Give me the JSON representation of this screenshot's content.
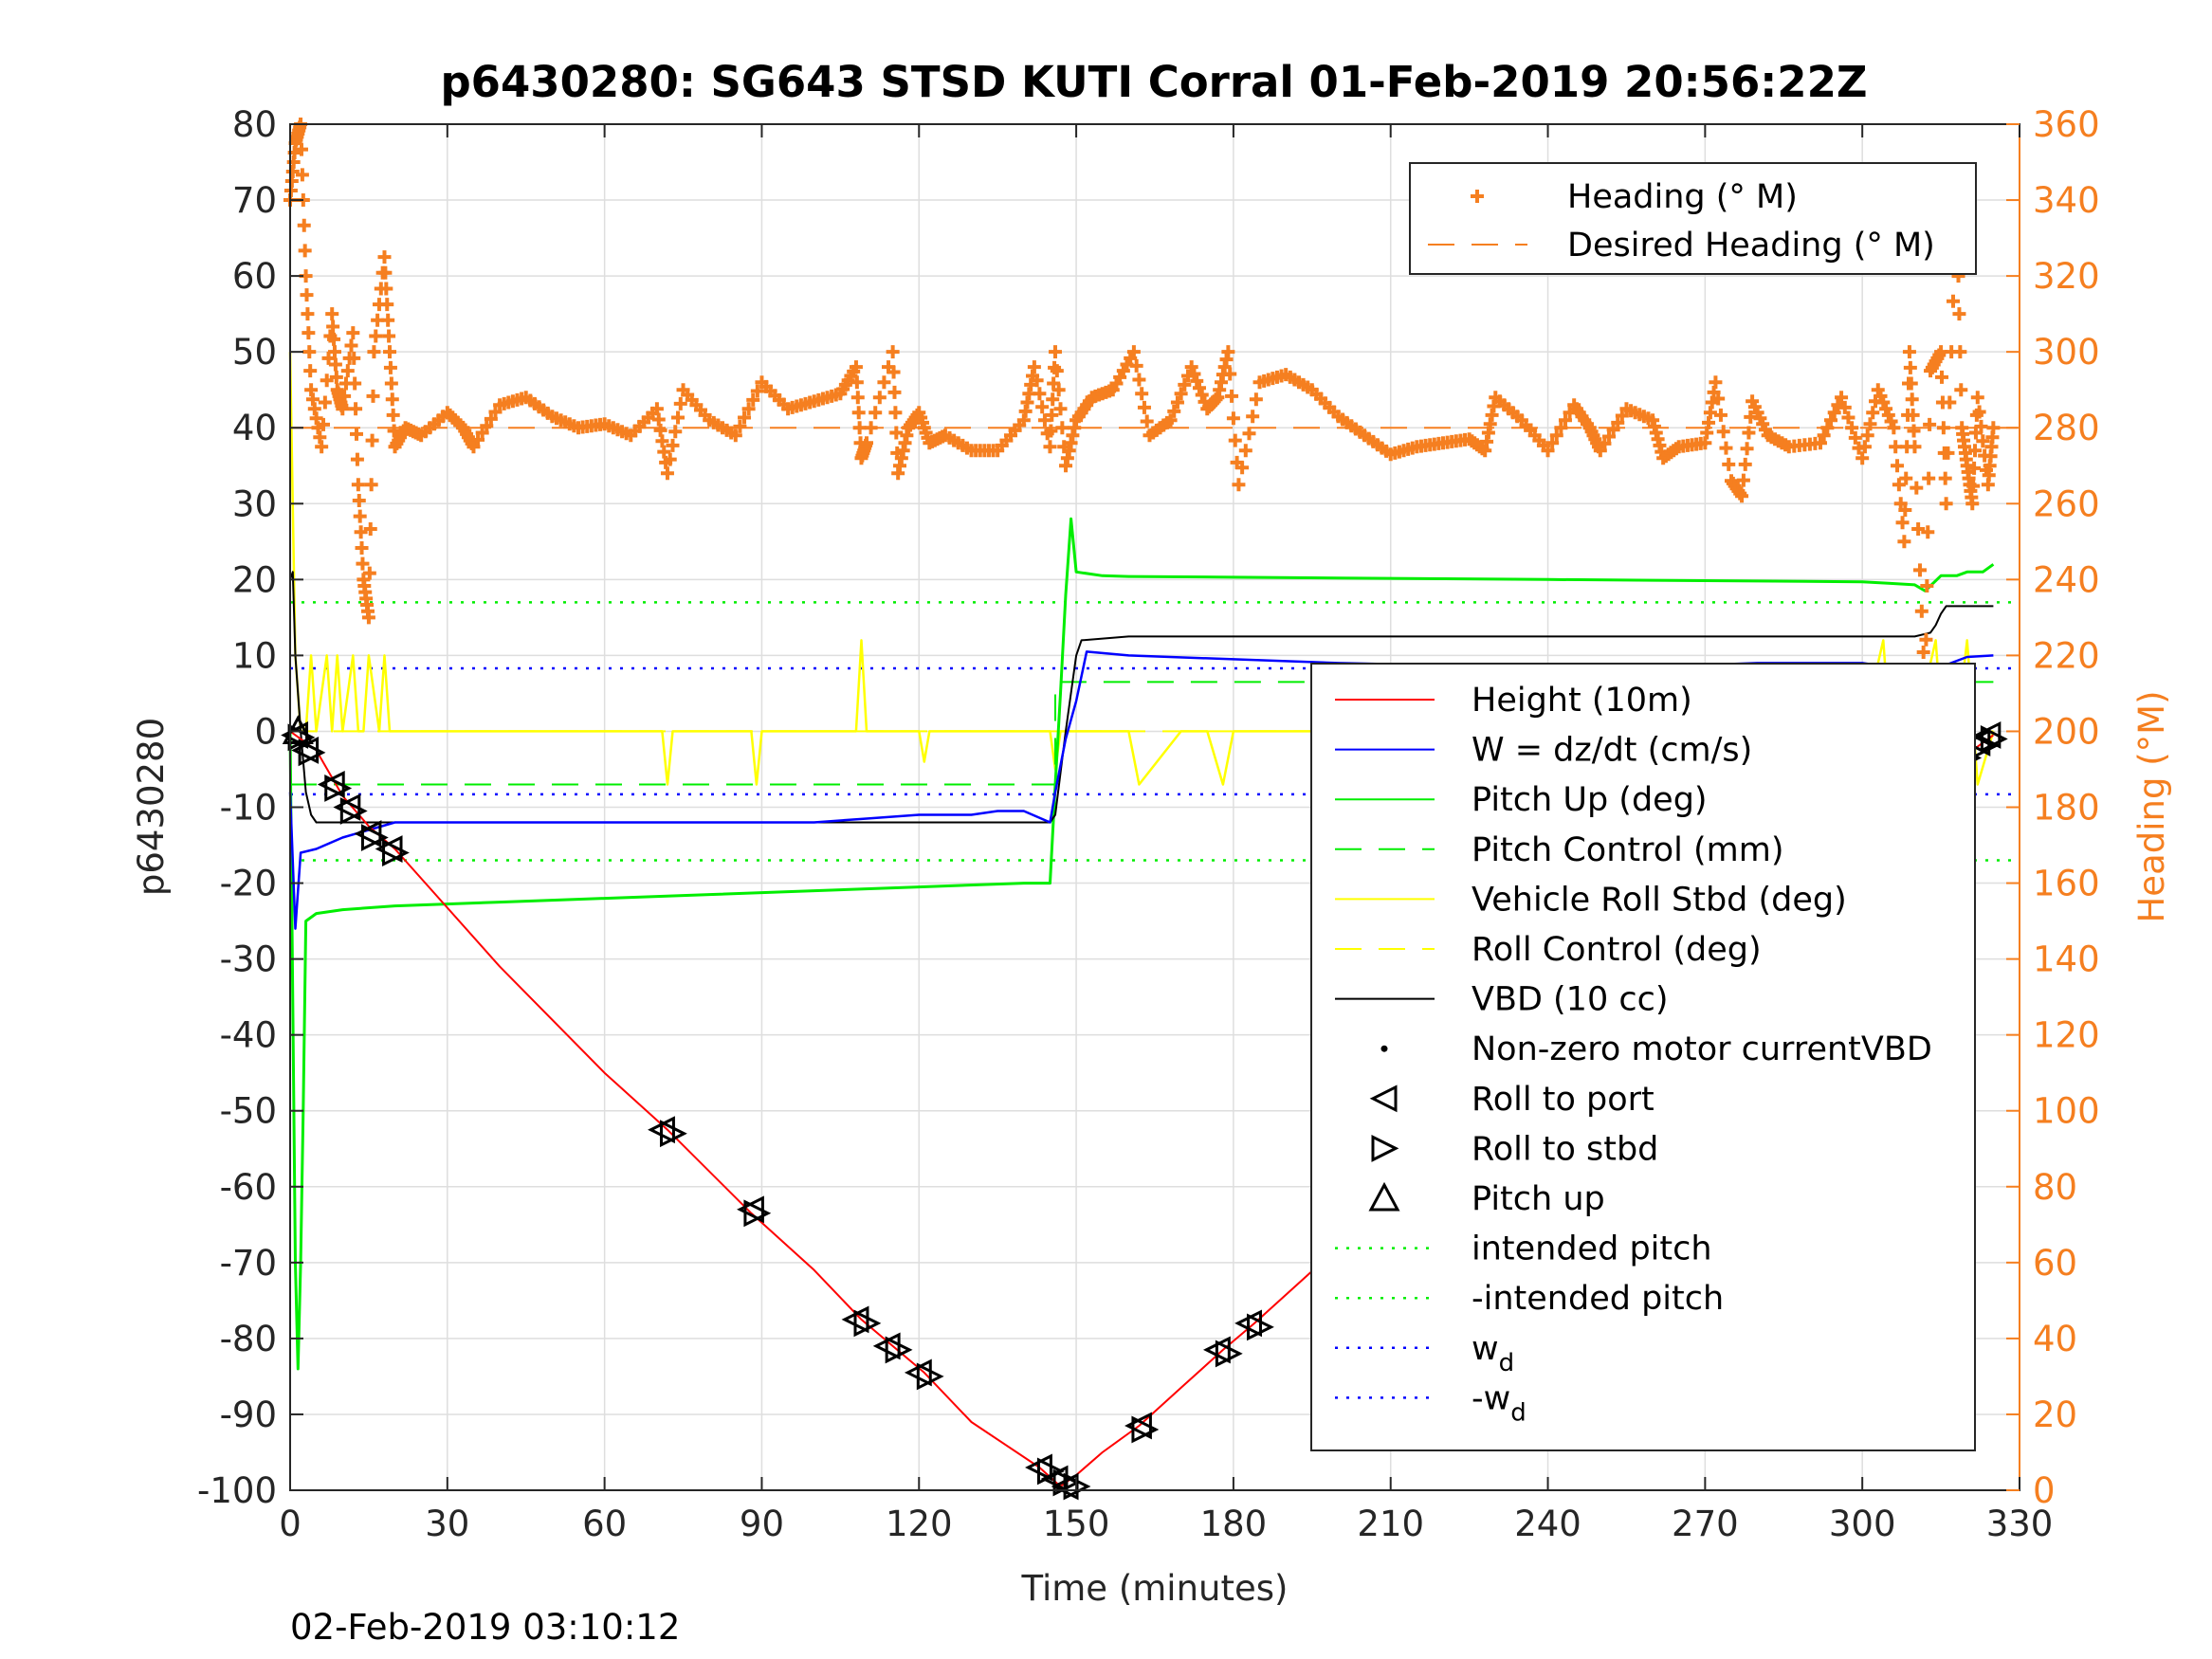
{
  "chart_data": {
    "type": "line",
    "title": "p6430280: SG643 STSD KUTI Corral 01-Feb-2019 20:56:22Z",
    "xlabel": "Time (minutes)",
    "ylabel": "p6430280",
    "y2label": "Heading (°M)",
    "footer": "02-Feb-2019 03:10:12",
    "xlim": [
      0,
      330
    ],
    "ylim": [
      -100,
      80
    ],
    "y2lim": [
      0,
      360
    ],
    "xticks": [
      "0",
      "30",
      "60",
      "90",
      "120",
      "150",
      "180",
      "210",
      "240",
      "270",
      "300",
      "330"
    ],
    "yticks": [
      "80",
      "70",
      "60",
      "50",
      "40",
      "30",
      "20",
      "10",
      "0",
      "-10",
      "-20",
      "-30",
      "-40",
      "-50",
      "-60",
      "-70",
      "-80",
      "-90",
      "-100"
    ],
    "y2ticks": [
      "360",
      "340",
      "320",
      "300",
      "280",
      "260",
      "240",
      "220",
      "200",
      "180",
      "160",
      "140",
      "120",
      "100",
      "80",
      "60",
      "40",
      "20",
      "0"
    ],
    "grid": true,
    "colors": {
      "axis_right": "#F57F20",
      "heading": "#F57F20",
      "height": "#FF0000",
      "w": "#0000FF",
      "pitch": "#00EE00",
      "roll": "#FFFF00",
      "vbd": "#000000"
    },
    "legend_top": {
      "placement": "top-right",
      "items": [
        {
          "label": "Heading (° M)",
          "style": "plus"
        },
        {
          "label": "Desired Heading (° M)",
          "style": "dash"
        }
      ]
    },
    "legend_main": {
      "placement": "lower-right",
      "items": [
        {
          "label": "Height (10m)",
          "style": "line",
          "color": "#FF0000"
        },
        {
          "label": "W = dz/dt (cm/s)",
          "style": "line",
          "color": "#0000FF"
        },
        {
          "label": "Pitch Up (deg)",
          "style": "line",
          "color": "#00EE00"
        },
        {
          "label": "Pitch Control (mm)",
          "style": "dash",
          "color": "#00EE00"
        },
        {
          "label": "Vehicle Roll Stbd (deg)",
          "style": "line",
          "color": "#FFFF00"
        },
        {
          "label": "Roll Control (deg)",
          "style": "dash",
          "color": "#FFFF00"
        },
        {
          "label": "VBD (10 cc)",
          "style": "line",
          "color": "#000000"
        },
        {
          "label": "Non-zero motor currentVBD",
          "style": "dot",
          "color": "#000000"
        },
        {
          "label": "Roll to port",
          "style": "tri-left",
          "color": "#000000"
        },
        {
          "label": "Roll to stbd",
          "style": "tri-right",
          "color": "#000000"
        },
        {
          "label": "Pitch up",
          "style": "tri-up",
          "color": "#000000"
        },
        {
          "label": "intended pitch",
          "style": "dot-line",
          "color": "#00EE00"
        },
        {
          "label": "-intended pitch",
          "style": "dot-line",
          "color": "#00EE00"
        },
        {
          "label": "w",
          "sub": "d",
          "style": "dot-line",
          "color": "#0000FF"
        },
        {
          "label": "-w",
          "sub": "d",
          "style": "dot-line",
          "color": "#0000FF"
        }
      ]
    },
    "series": [
      {
        "name": "Height (10m)",
        "axis": "left",
        "x": [
          0,
          2,
          5,
          10,
          15,
          20,
          40,
          60,
          72,
          88,
          100,
          109,
          115,
          121,
          130,
          143,
          147,
          148,
          150,
          155,
          162,
          170,
          178,
          184,
          200,
          231,
          252,
          273,
          280,
          296,
          303,
          305,
          308,
          314,
          316,
          319,
          321,
          323,
          325
        ],
        "y": [
          0,
          -1,
          -2.5,
          -8.5,
          -12.5,
          -15.5,
          -31,
          -45,
          -52.5,
          -63.5,
          -71,
          -77.5,
          -81,
          -84.5,
          -91,
          -97,
          -99.5,
          -99,
          -98,
          -95,
          -91.5,
          -86.5,
          -81.5,
          -78,
          -68,
          -51.5,
          -40.5,
          -28.5,
          -25,
          -15.5,
          -12,
          -10.5,
          -9,
          -7,
          -5.5,
          -3.5,
          -2.5,
          -1.5,
          -0.5
        ]
      },
      {
        "name": "W = dz/dt (cm/s)",
        "axis": "left",
        "x": [
          0,
          1,
          2,
          5,
          10,
          20,
          40,
          60,
          80,
          100,
          110,
          120,
          130,
          135,
          140,
          145,
          146,
          148,
          150,
          152,
          160,
          180,
          200,
          220,
          240,
          260,
          280,
          300,
          305,
          310,
          315,
          320,
          325
        ],
        "y": [
          -8,
          -26,
          -16,
          -15.5,
          -14,
          -12,
          -12,
          -12,
          -12,
          -12,
          -11.5,
          -11,
          -11,
          -10.5,
          -10.5,
          -12,
          -8,
          -1,
          4,
          10.5,
          10,
          9.5,
          9,
          8.7,
          8.6,
          8.5,
          9,
          9,
          8.5,
          8.2,
          8.5,
          9.8,
          10
        ]
      },
      {
        "name": "Pitch Up (deg)",
        "axis": "left",
        "x": [
          0,
          1,
          1.5,
          2,
          2.5,
          3,
          5,
          10,
          20,
          40,
          60,
          80,
          100,
          120,
          140,
          145,
          146,
          147,
          148,
          149,
          150,
          155,
          160,
          180,
          200,
          220,
          240,
          260,
          280,
          300,
          305,
          310,
          312,
          315,
          318,
          320,
          323,
          325
        ],
        "y": [
          0,
          -70,
          -84,
          -70,
          -50,
          -25,
          -24,
          -23.5,
          -23,
          -22.5,
          -22,
          -21.5,
          -21,
          -20.5,
          -20,
          -20,
          -7,
          5,
          18,
          28,
          21,
          20.5,
          20.4,
          20.3,
          20.2,
          20.1,
          20,
          19.9,
          19.8,
          19.7,
          19.5,
          19.3,
          18.5,
          20.5,
          20.5,
          21,
          21,
          22
        ]
      },
      {
        "name": "Pitch Control (mm)",
        "axis": "left",
        "x": [
          0,
          146,
          146,
          325
        ],
        "y": [
          -7,
          -7,
          6.5,
          6.5
        ]
      },
      {
        "name": "Vehicle Roll Stbd (deg)",
        "axis": "left",
        "x": [
          0,
          1,
          2,
          3,
          4,
          5,
          7,
          8,
          9,
          10,
          12,
          13,
          14,
          15,
          17,
          18,
          19,
          20,
          30,
          60,
          71,
          72,
          73,
          88,
          89,
          90,
          108,
          109,
          110,
          120,
          121,
          122,
          130,
          145,
          146,
          147,
          150,
          160,
          162,
          170,
          175,
          178,
          180,
          200,
          250,
          270,
          280,
          300,
          304,
          306,
          310,
          314,
          316,
          318,
          320,
          322,
          325
        ],
        "y": [
          50,
          10,
          0,
          0,
          10,
          0,
          10,
          0,
          10,
          0,
          10,
          0,
          0,
          10,
          0,
          10,
          0,
          0,
          0,
          0,
          0,
          -7,
          0,
          0,
          -7,
          0,
          0,
          12,
          0,
          0,
          -4,
          0,
          0,
          0,
          -5,
          0,
          0,
          0,
          -7,
          0,
          0,
          -7,
          0,
          0,
          0,
          0,
          0,
          0,
          12,
          -7,
          0,
          12,
          -7,
          0,
          12,
          -7,
          0
        ]
      },
      {
        "name": "Roll Control (deg)",
        "axis": "left",
        "x": [
          0,
          325
        ],
        "y": [
          0,
          0
        ]
      },
      {
        "name": "VBD (10 cc)",
        "axis": "left",
        "x": [
          0,
          0.5,
          1,
          2,
          3,
          4,
          5,
          10,
          20,
          40,
          60,
          80,
          100,
          120,
          140,
          145,
          146,
          148,
          150,
          151,
          160,
          180,
          200,
          220,
          240,
          260,
          280,
          300,
          310,
          313,
          314,
          315,
          316,
          318,
          320,
          325
        ],
        "y": [
          20,
          21,
          10,
          0,
          -8,
          -11,
          -12,
          -12,
          -12,
          -12,
          -12,
          -12,
          -12,
          -12,
          -12,
          -12,
          -11,
          0,
          10,
          12,
          12.5,
          12.5,
          12.5,
          12.5,
          12.5,
          12.5,
          12.5,
          12.5,
          12.5,
          13,
          14,
          15.5,
          16.5,
          16.5,
          16.5,
          16.5
        ]
      },
      {
        "name": "intended pitch",
        "axis": "left",
        "x": [
          0,
          330
        ],
        "y": [
          17,
          17
        ]
      },
      {
        "name": "-intended pitch",
        "axis": "left",
        "x": [
          0,
          330
        ],
        "y": [
          -17,
          -17
        ]
      },
      {
        "name": "w_d",
        "axis": "left",
        "x": [
          0,
          330
        ],
        "y": [
          8.3,
          8.3
        ]
      },
      {
        "name": "-w_d",
        "axis": "left",
        "x": [
          0,
          330
        ],
        "y": [
          -8.3,
          -8.3
        ]
      },
      {
        "name": "Desired Heading (° M)",
        "axis": "right",
        "x": [
          0,
          330
        ],
        "y": [
          280,
          280
        ]
      },
      {
        "name": "Heading (° M)",
        "axis": "right",
        "x": [
          0,
          1,
          2,
          3,
          4,
          6,
          8,
          9,
          10,
          12,
          13,
          14,
          15,
          16,
          18,
          19,
          20,
          22,
          25,
          30,
          33,
          35,
          40,
          45,
          50,
          55,
          60,
          65,
          70,
          72,
          75,
          80,
          85,
          90,
          95,
          100,
          105,
          108,
          109,
          110,
          115,
          116,
          118,
          120,
          122,
          125,
          130,
          135,
          140,
          142,
          145,
          146,
          148,
          150,
          153,
          157,
          161,
          164,
          168,
          172,
          175,
          177,
          179,
          181,
          185,
          190,
          195,
          200,
          205,
          210,
          215,
          220,
          225,
          228,
          230,
          235,
          240,
          245,
          248,
          250,
          255,
          260,
          262,
          265,
          270,
          272,
          275,
          277,
          279,
          282,
          286,
          292,
          296,
          300,
          303,
          306,
          308,
          309,
          310,
          312,
          313,
          315,
          316,
          318,
          319,
          320,
          321,
          322,
          324,
          325
        ],
        "y": [
          340,
          355,
          360,
          320,
          290,
          275,
          310,
          290,
          285,
          305,
          265,
          240,
          230,
          300,
          325,
          300,
          275,
          280,
          278,
          284,
          280,
          275,
          286,
          288,
          283,
          280,
          281,
          278,
          285,
          268,
          290,
          282,
          278,
          292,
          285,
          287,
          289,
          296,
          272,
          276,
          300,
          268,
          280,
          284,
          276,
          278,
          274,
          274,
          282,
          296,
          275,
          300,
          270,
          282,
          288,
          290,
          300,
          278,
          282,
          296,
          285,
          288,
          300,
          265,
          292,
          294,
          290,
          283,
          278,
          273,
          275,
          276,
          277,
          274,
          288,
          282,
          274,
          286,
          280,
          274,
          285,
          282,
          272,
          275,
          276,
          292,
          266,
          262,
          287,
          278,
          275,
          276,
          288,
          272,
          290,
          280,
          250,
          300,
          275,
          210,
          295,
          300,
          260,
          340,
          280,
          270,
          260,
          288,
          265,
          280
        ]
      }
    ],
    "markers": {
      "roll_to_port": {
        "x": [
          1,
          3,
          8,
          11,
          15,
          19,
          71,
          88,
          108,
          114,
          120,
          143,
          146,
          148,
          162,
          177,
          183,
          230,
          251,
          272,
          279,
          296,
          303,
          305,
          308,
          312,
          315,
          319,
          322,
          324
        ],
        "y": [
          -0.5,
          -2.5,
          -7,
          -10,
          -13.5,
          -15.5,
          -52.5,
          -63,
          -77.5,
          -81,
          -84.5,
          -97,
          -98.5,
          -99.5,
          -91.5,
          -81.5,
          -78,
          -51.5,
          -40.5,
          -28.5,
          -25,
          -16,
          -12,
          -11,
          -9,
          -7,
          -5.5,
          -3,
          -1.5,
          -0.5
        ]
      },
      "roll_to_stbd": {
        "x": [
          2,
          4,
          9,
          12,
          16,
          20,
          73,
          89,
          110,
          116,
          122,
          145,
          148,
          150,
          163,
          179,
          185,
          231,
          252,
          273,
          281,
          297,
          304,
          306,
          309,
          313,
          316,
          320,
          323,
          325
        ],
        "y": [
          -0.8,
          -2.8,
          -7.5,
          -10.5,
          -14,
          -16,
          -53,
          -63.5,
          -78,
          -81.5,
          -85,
          -97.5,
          -99,
          -99.5,
          -92,
          -82,
          -78.5,
          -52,
          -41,
          -29,
          -25.5,
          -16.5,
          -12.5,
          -11.5,
          -9.5,
          -7.5,
          -6,
          -3.5,
          -2,
          -1
        ]
      },
      "pitch_up": {
        "x": [
          1.5
        ],
        "y": [
          0
        ]
      }
    }
  }
}
